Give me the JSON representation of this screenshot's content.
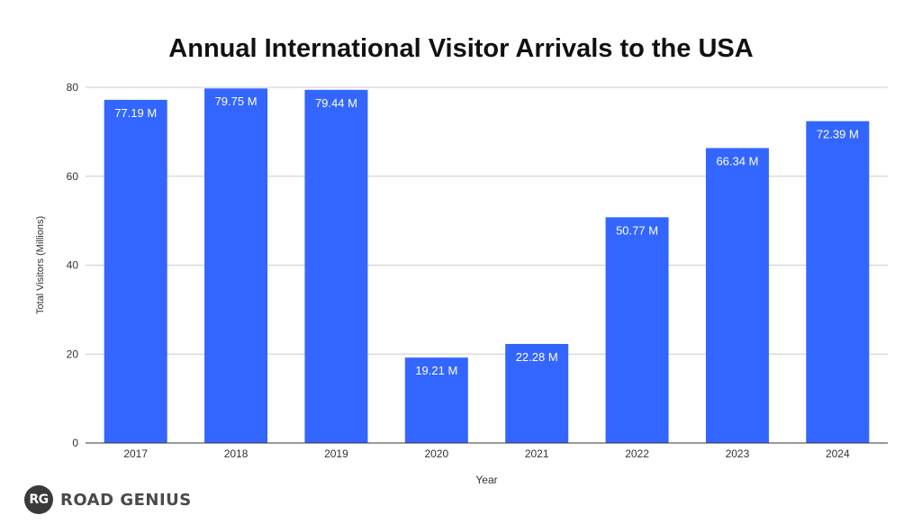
{
  "chart_data": {
    "type": "bar",
    "title": "Annual International Visitor Arrivals to the USA",
    "xlabel": "Year",
    "ylabel": "Total Visitors (Millions)",
    "categories": [
      "2017",
      "2018",
      "2019",
      "2020",
      "2021",
      "2022",
      "2023",
      "2024"
    ],
    "values": [
      77.19,
      79.75,
      79.44,
      19.21,
      22.28,
      50.77,
      66.34,
      72.39
    ],
    "data_labels": [
      "77.19 M",
      "79.75 M",
      "79.44 M",
      "19.21 M",
      "22.28 M",
      "50.77 M",
      "66.34 M",
      "72.39 M"
    ],
    "ylim": [
      0,
      80
    ],
    "yticks": [
      0,
      20,
      40,
      60,
      80
    ],
    "grid": true,
    "bar_color": "#3366ff"
  },
  "branding": {
    "badge": "RG",
    "name": "ROAD GENIUS"
  }
}
